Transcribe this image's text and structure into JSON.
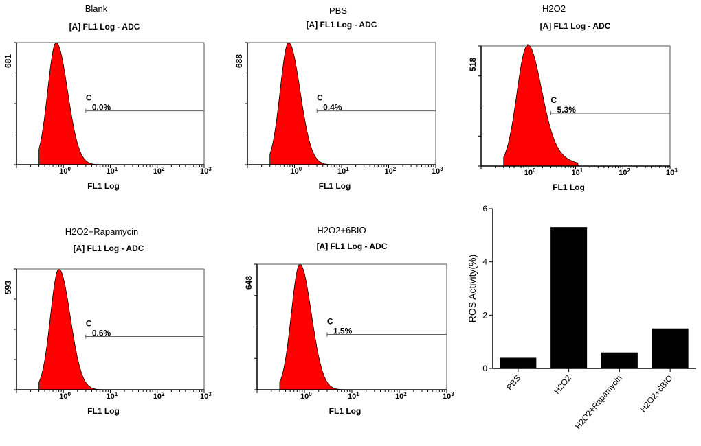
{
  "colors": {
    "histogram_fill": "#ff0000",
    "bar_fill": "#000000",
    "axis": "#000000",
    "gate": "#606060"
  },
  "chart_data": [
    {
      "type": "histogram",
      "sample": "Blank",
      "title": "[A] FL1 Log - ADC",
      "xlabel": "FL1 Log",
      "x_scale": "log",
      "xlim": [
        0.1,
        1000
      ],
      "x_ticks": [
        {
          "base": "10",
          "exp": "0"
        },
        {
          "base": "10",
          "exp": "1"
        },
        {
          "base": "10",
          "exp": "2"
        },
        {
          "base": "10",
          "exp": "3"
        }
      ],
      "y_max": 681,
      "y_max_label": "681",
      "peak_x": 0.7,
      "peak_y": 681,
      "gate": {
        "name": "C",
        "percent": "0.0%",
        "from_x": 3,
        "to_x": 1000
      }
    },
    {
      "type": "histogram",
      "sample": "PBS",
      "title": "[A] FL1 Log - ADC",
      "xlabel": "FL1 Log",
      "x_scale": "log",
      "xlim": [
        0.1,
        1000
      ],
      "x_ticks": [
        {
          "base": "10",
          "exp": "0"
        },
        {
          "base": "10",
          "exp": "1"
        },
        {
          "base": "10",
          "exp": "2"
        },
        {
          "base": "10",
          "exp": "3"
        }
      ],
      "y_max": 688,
      "y_max_label": "688",
      "peak_x": 0.75,
      "peak_y": 688,
      "gate": {
        "name": "C",
        "percent": "0.4%",
        "from_x": 3,
        "to_x": 1000
      }
    },
    {
      "type": "histogram",
      "sample": "H2O2",
      "title": "[A] FL1 Log - ADC",
      "xlabel": "FL1 Log",
      "x_scale": "log",
      "xlim": [
        0.1,
        1000
      ],
      "x_ticks": [
        {
          "base": "10",
          "exp": "0"
        },
        {
          "base": "10",
          "exp": "1"
        },
        {
          "base": "10",
          "exp": "2"
        },
        {
          "base": "10",
          "exp": "3"
        }
      ],
      "y_max": 518,
      "y_max_label": "518",
      "peak_x": 0.95,
      "peak_y": 518,
      "gate": {
        "name": "C",
        "percent": "5.3%",
        "from_x": 3,
        "to_x": 1000
      }
    },
    {
      "type": "histogram",
      "sample": "H2O2+Rapamycin",
      "title": "[A] FL1 Log - ADC",
      "xlabel": "FL1 Log",
      "x_scale": "log",
      "xlim": [
        0.1,
        1000
      ],
      "x_ticks": [
        {
          "base": "10",
          "exp": "0"
        },
        {
          "base": "10",
          "exp": "1"
        },
        {
          "base": "10",
          "exp": "2"
        },
        {
          "base": "10",
          "exp": "3"
        }
      ],
      "y_max": 593,
      "y_max_label": "593",
      "peak_x": 0.8,
      "peak_y": 593,
      "gate": {
        "name": "C",
        "percent": "0.6%",
        "from_x": 3,
        "to_x": 1000
      }
    },
    {
      "type": "histogram",
      "sample": "H2O2+6BIO",
      "title": "[A] FL1 Log - ADC",
      "xlabel": "FL1 Log",
      "x_scale": "log",
      "xlim": [
        0.1,
        1000
      ],
      "x_ticks": [
        {
          "base": "10",
          "exp": "0"
        },
        {
          "base": "10",
          "exp": "1"
        },
        {
          "base": "10",
          "exp": "2"
        },
        {
          "base": "10",
          "exp": "3"
        }
      ],
      "y_max": 648,
      "y_max_label": "648",
      "peak_x": 0.8,
      "peak_y": 648,
      "gate": {
        "name": "C",
        "percent": "1.5%",
        "from_x": 3,
        "to_x": 1000
      }
    },
    {
      "type": "bar",
      "title": "",
      "xlabel": "",
      "ylabel": "ROS Activity(%)",
      "categories": [
        "PBS",
        "H2O2",
        "H2O2+Rapamycin",
        "H2O2+6BIO"
      ],
      "values": [
        0.4,
        5.3,
        0.6,
        1.5
      ],
      "ylim": [
        0,
        6
      ],
      "yticks": [
        0,
        2,
        4,
        6
      ]
    }
  ]
}
